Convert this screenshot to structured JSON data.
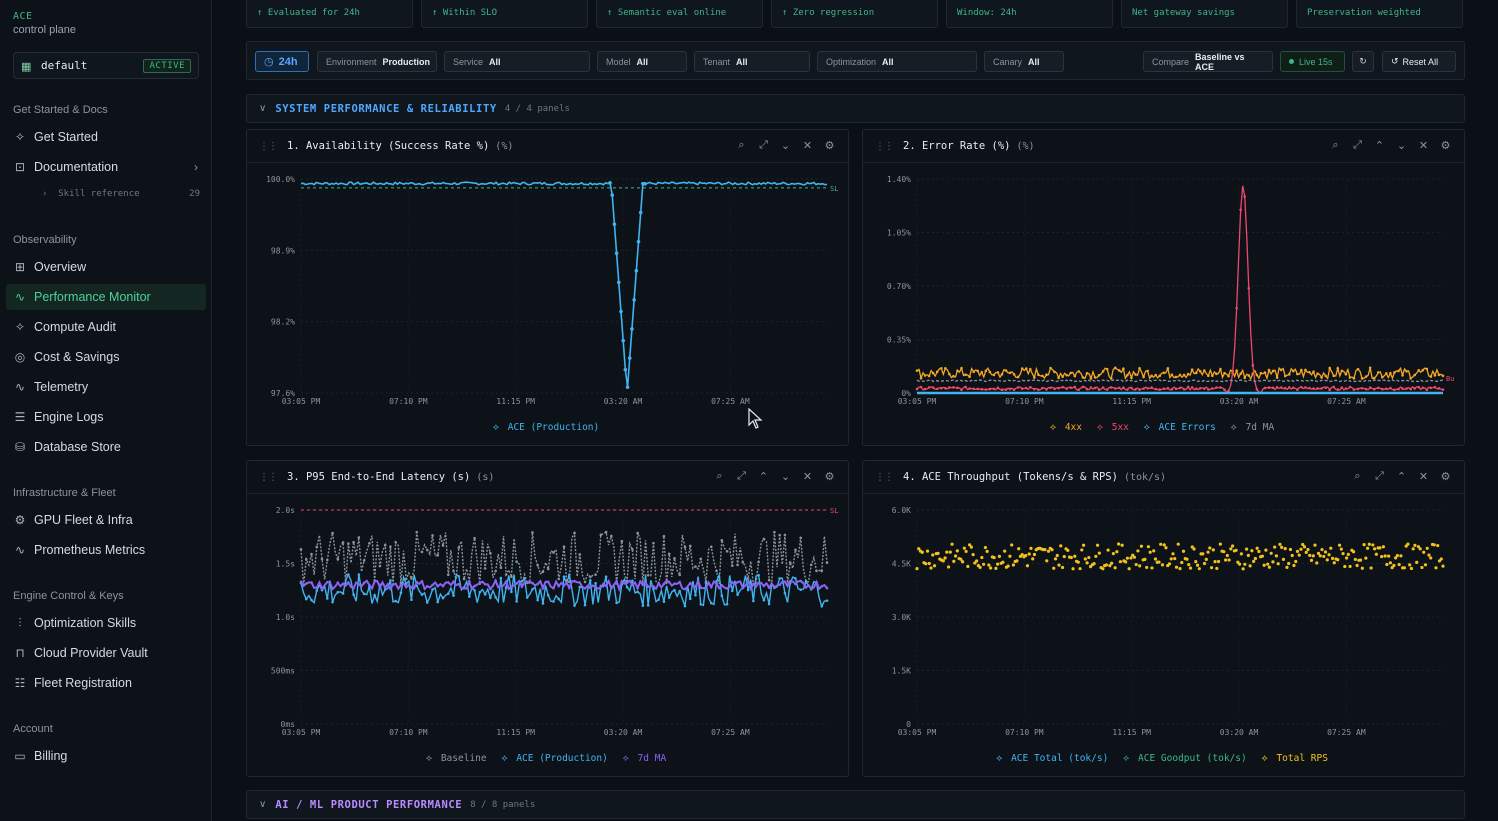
{
  "sidebar": {
    "brand": "ACE",
    "brand_sub": "control plane",
    "workspace": {
      "name": "default",
      "badge": "ACTIVE"
    },
    "sections": {
      "docs": "Get Started & Docs",
      "observability": "Observability",
      "infra": "Infrastructure & Fleet",
      "engine": "Engine Control & Keys",
      "account": "Account"
    },
    "items": {
      "get_started": "Get Started",
      "documentation": "Documentation",
      "skill_ref": "Skill reference",
      "skill_ref_count": "29",
      "overview": "Overview",
      "perf_monitor": "Performance Monitor",
      "compute_audit": "Compute Audit",
      "cost_savings": "Cost & Savings",
      "telemetry": "Telemetry",
      "engine_logs": "Engine Logs",
      "database_store": "Database Store",
      "gpu_fleet": "GPU Fleet & Infra",
      "prometheus": "Prometheus Metrics",
      "opt_skills": "Optimization Skills",
      "cloud_vault": "Cloud Provider Vault",
      "fleet_reg": "Fleet Registration",
      "billing": "Billing"
    }
  },
  "kpis": [
    {
      "text": "↑ Evaluated for 24h",
      "color": "#3fb58a"
    },
    {
      "text": "↑ Within SLO",
      "color": "#3fb58a"
    },
    {
      "text": "↑ Semantic eval online",
      "color": "#3fb58a"
    },
    {
      "text": "↑ Zero regression",
      "color": "#3fb58a"
    },
    {
      "text": "Window: 24h",
      "color": "#3fb58a"
    },
    {
      "text": "Net gateway savings",
      "color": "#3fb58a"
    },
    {
      "text": "Preservation weighted",
      "color": "#3fb58a"
    }
  ],
  "filters": {
    "time": "24h",
    "environment": {
      "label": "Environment",
      "value": "Production"
    },
    "service": {
      "label": "Service",
      "value": "All"
    },
    "model": {
      "label": "Model",
      "value": "All"
    },
    "tenant": {
      "label": "Tenant",
      "value": "All"
    },
    "optimization": {
      "label": "Optimization",
      "value": "All"
    },
    "canary": {
      "label": "Canary",
      "value": "All"
    },
    "compare": {
      "label": "Compare",
      "value": "Baseline vs ACE"
    },
    "live": "Live 15s",
    "reset": "Reset All"
  },
  "sections": [
    {
      "title": "SYSTEM PERFORMANCE & RELIABILITY",
      "count": "4 / 4 panels",
      "color": "#4fa8ff"
    },
    {
      "title": "AI / ML PRODUCT PERFORMANCE",
      "count": "8 / 8 panels",
      "color": "#b98cff"
    }
  ],
  "panels": [
    {
      "title": "1. Availability (Success Rate %)",
      "unit": "(%)"
    },
    {
      "title": "2. Error Rate (%)",
      "unit": "(%)"
    },
    {
      "title": "3. P95 End-to-End Latency (s)",
      "unit": "(s)"
    },
    {
      "title": "4. ACE Throughput (Tokens/s & RPS)",
      "unit": "(tok/s)"
    }
  ],
  "legends": {
    "p1": [
      "ACE (Production)"
    ],
    "p2": [
      "4xx",
      "5xx",
      "ACE Errors",
      "7d MA"
    ],
    "p3": [
      "Baseline",
      "ACE (Production)",
      "7d MA"
    ],
    "p4": [
      "ACE Total (tok/s)",
      "ACE Goodput (tok/s)",
      "Total RPS"
    ]
  },
  "icons": [
    "drag-grip-icon",
    "zoom-icon",
    "expand-icon",
    "chevron-up-icon",
    "chevron-down-icon",
    "close-icon",
    "gear-icon",
    "clock-icon",
    "refresh-icon"
  ],
  "chart_data": [
    {
      "type": "line",
      "title": "1. Availability (Success Rate %)",
      "x_ticks": [
        "03:05 PM",
        "07:10 PM",
        "11:15 PM",
        "03:20 AM",
        "07:25 AM"
      ],
      "y_ticks": [
        "100.0%",
        "98.9%",
        "98.2%",
        "97.6%"
      ],
      "ylim": [
        97.6,
        100.0
      ],
      "slo_label": "SL",
      "slo_value": 99.9,
      "series": [
        {
          "name": "ACE (Production)",
          "color": "#3fb4f0",
          "baseline": 99.95,
          "dip_center_x": 0.62,
          "dip_min": 97.6
        }
      ]
    },
    {
      "type": "line",
      "title": "2. Error Rate (%)",
      "x_ticks": [
        "03:05 PM",
        "07:10 PM",
        "11:15 PM",
        "03:20 AM",
        "07:25 AM"
      ],
      "y_ticks": [
        "1.40%",
        "1.05%",
        "0.70%",
        "0.35%",
        "0%"
      ],
      "ylim": [
        0,
        1.4
      ],
      "slo_label": "Bu",
      "series": [
        {
          "name": "4xx",
          "color": "#f5a623",
          "level": 0.13
        },
        {
          "name": "5xx",
          "color": "#f0476b",
          "level": 0.02,
          "spike_x": 0.62,
          "spike_max": 1.36
        },
        {
          "name": "ACE Errors",
          "color": "#3fb4f0",
          "level": 0.0
        },
        {
          "name": "7d MA",
          "color": "#8b949e",
          "level": 0.08
        }
      ]
    },
    {
      "type": "line",
      "title": "3. P95 End-to-End Latency (s)",
      "x_ticks": [
        "03:05 PM",
        "07:10 PM",
        "11:15 PM",
        "03:20 AM",
        "07:25 AM"
      ],
      "y_ticks": [
        "2.0s",
        "1.5s",
        "1.0s",
        "500ms",
        "0ms"
      ],
      "ylim": [
        0,
        2.0
      ],
      "slo_label": "SL",
      "slo_value": 2.0,
      "series": [
        {
          "name": "Baseline",
          "color": "#8b949e",
          "level": 1.55,
          "noise": 0.25
        },
        {
          "name": "ACE (Production)",
          "color": "#3fb4f0",
          "level": 1.25,
          "noise": 0.15
        },
        {
          "name": "7d MA",
          "color": "#8a63f5",
          "level": 1.3,
          "noise": 0.04
        }
      ]
    },
    {
      "type": "scatter",
      "title": "4. ACE Throughput (Tokens/s & RPS)",
      "x_ticks": [
        "03:05 PM",
        "07:10 PM",
        "11:15 PM",
        "03:20 AM",
        "07:25 AM"
      ],
      "y_ticks": [
        "6.0K",
        "4.5K",
        "3.0K",
        "1.5K",
        "0"
      ],
      "ylim": [
        0,
        6000
      ],
      "series": [
        {
          "name": "Total RPS",
          "color": "#f2c21b",
          "level": 4700,
          "noise": 350
        }
      ]
    }
  ]
}
